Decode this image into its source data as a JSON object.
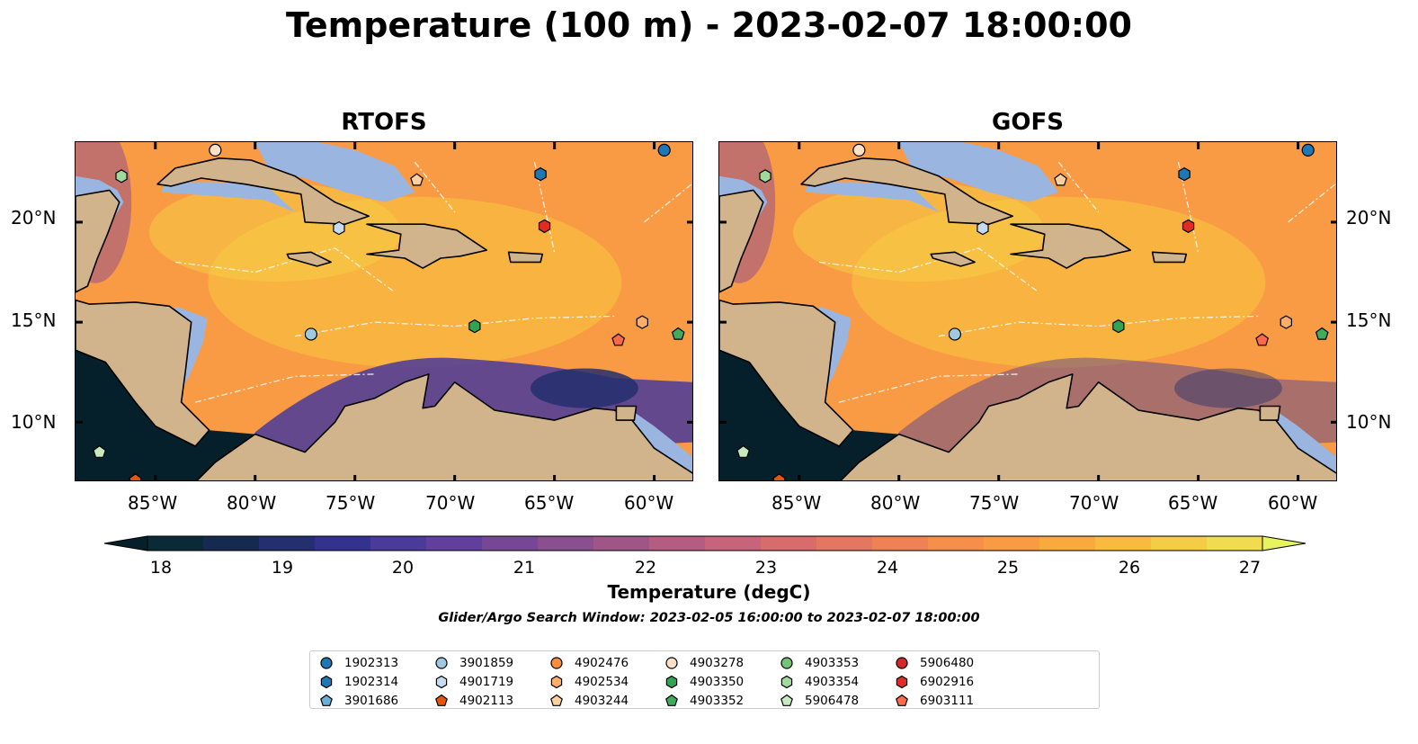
{
  "title": "Temperature (100 m) - 2023-02-07 18:00:00",
  "panels": [
    {
      "title": "RTOFS",
      "cool_band": 0.85
    },
    {
      "title": "GOFS",
      "cool_band": 0.45
    }
  ],
  "axes": {
    "lon_ticks": [
      "85°W",
      "80°W",
      "75°W",
      "70°W",
      "65°W",
      "60°W"
    ],
    "lat_ticks": [
      "20°N",
      "15°N",
      "10°N"
    ]
  },
  "colorbar": {
    "label": "Temperature (degC)",
    "ticks": [
      "18",
      "19",
      "20",
      "21",
      "22",
      "23",
      "24",
      "25",
      "26",
      "27"
    ],
    "colors": [
      "#0b2a38",
      "#142b4f",
      "#232f6f",
      "#33338f",
      "#4a3a9a",
      "#613f9c",
      "#754795",
      "#8a4f8f",
      "#9f5686",
      "#b45d80",
      "#c7637a",
      "#d86c6d",
      "#e47762",
      "#ee8255",
      "#f58f4a",
      "#f89b44",
      "#f9aa3f",
      "#f8bb3f",
      "#f5cc45",
      "#f0dc4f"
    ],
    "extend_low": "#06202b",
    "extend_high": "#e8f45e"
  },
  "colors": {
    "land": "#d2b48c",
    "shelf": "#9bb5e1",
    "pacific": "#06202b"
  },
  "search_window": "Glider/Argo Search Window: 2023-02-05 16:00:00 to 2023-02-07 18:00:00",
  "legend": [
    {
      "label": "1902313",
      "marker": "circle",
      "color": "#1f77b4"
    },
    {
      "label": "1902314",
      "marker": "hexagon",
      "color": "#1f77b4"
    },
    {
      "label": "3901686",
      "marker": "pentagon",
      "color": "#6baed6"
    },
    {
      "label": "3901859",
      "marker": "circle",
      "color": "#9ecae1"
    },
    {
      "label": "4901719",
      "marker": "hexagon",
      "color": "#c6dbef"
    },
    {
      "label": "4902113",
      "marker": "pentagon",
      "color": "#e6550d"
    },
    {
      "label": "4902476",
      "marker": "circle",
      "color": "#fd8d3c"
    },
    {
      "label": "4902534",
      "marker": "hexagon",
      "color": "#fdae6b"
    },
    {
      "label": "4903244",
      "marker": "pentagon",
      "color": "#fdd0a2"
    },
    {
      "label": "4903278",
      "marker": "circle",
      "color": "#fde0c8"
    },
    {
      "label": "4903350",
      "marker": "hexagon",
      "color": "#31a354"
    },
    {
      "label": "4903352",
      "marker": "pentagon",
      "color": "#41ab5d"
    },
    {
      "label": "4903353",
      "marker": "circle",
      "color": "#74c476"
    },
    {
      "label": "4903354",
      "marker": "hexagon",
      "color": "#a1d99b"
    },
    {
      "label": "5906478",
      "marker": "pentagon",
      "color": "#c7e9c0"
    },
    {
      "label": "5906480",
      "marker": "circle",
      "color": "#d62728"
    },
    {
      "label": "6902916",
      "marker": "hexagon",
      "color": "#de2d26"
    },
    {
      "label": "6903111",
      "marker": "pentagon",
      "color": "#fb6a4a"
    }
  ],
  "floats": [
    {
      "id": "1902313",
      "lon": -59.5,
      "lat": 23.6
    },
    {
      "id": "1902314",
      "lon": -65.7,
      "lat": 22.4
    },
    {
      "id": "3901859",
      "lon": -77.2,
      "lat": 14.4
    },
    {
      "id": "4901719",
      "lon": -75.8,
      "lat": 19.7
    },
    {
      "id": "4902113",
      "lon": -86.0,
      "lat": 7.1
    },
    {
      "id": "4902534",
      "lon": -60.6,
      "lat": 15.0
    },
    {
      "id": "4903244",
      "lon": -71.9,
      "lat": 22.1
    },
    {
      "id": "4903278",
      "lon": -82.0,
      "lat": 23.6
    },
    {
      "id": "4903350",
      "lon": -69.0,
      "lat": 14.8
    },
    {
      "id": "4903352",
      "lon": -58.8,
      "lat": 14.4
    },
    {
      "id": "4903354",
      "lon": -86.7,
      "lat": 22.3
    },
    {
      "id": "5906478",
      "lon": -87.8,
      "lat": 8.5
    },
    {
      "id": "6902916",
      "lon": -65.5,
      "lat": 19.8
    },
    {
      "id": "6903111",
      "lon": -61.8,
      "lat": 14.1
    }
  ]
}
